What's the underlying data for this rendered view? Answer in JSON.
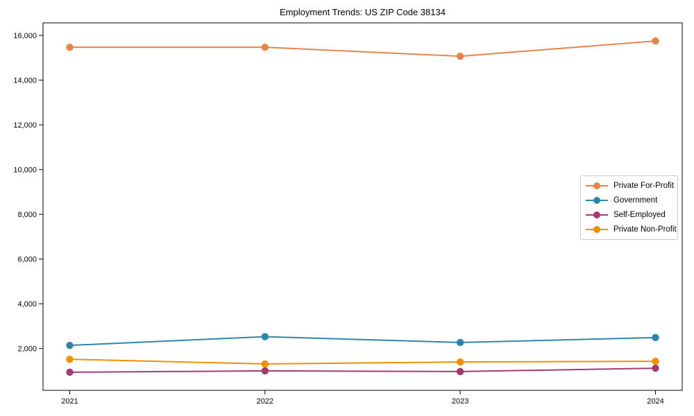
{
  "chart_data": {
    "type": "line",
    "title": "Employment Trends: US ZIP Code 38134",
    "xlabel": "",
    "ylabel": "",
    "x": [
      2021,
      2022,
      2023,
      2024
    ],
    "xtick_labels": [
      "2021",
      "2022",
      "2023",
      "2024"
    ],
    "series": [
      {
        "name": "Private For-Profit",
        "color": "#E8834A",
        "values": [
          15470,
          15470,
          15070,
          15750
        ]
      },
      {
        "name": "Government",
        "color": "#2E86AB",
        "values": [
          2140,
          2530,
          2270,
          2490
        ]
      },
      {
        "name": "Self-Employed",
        "color": "#A23B72",
        "values": [
          940,
          1000,
          970,
          1120
        ]
      },
      {
        "name": "Private Non-Profit",
        "color": "#F18F01",
        "values": [
          1520,
          1310,
          1400,
          1430
        ]
      }
    ],
    "yticks": [
      2000,
      4000,
      6000,
      8000,
      10000,
      12000,
      14000,
      16000
    ],
    "ytick_labels": [
      "2,000",
      "4,000",
      "6,000",
      "8,000",
      "10,000",
      "12,000",
      "14,000",
      "16,000"
    ],
    "ylim": [
      130,
      16560
    ],
    "grid": false,
    "legend_position": "center right",
    "marker": "circle",
    "axis_color": "#000000",
    "background_color": "#ffffff"
  }
}
